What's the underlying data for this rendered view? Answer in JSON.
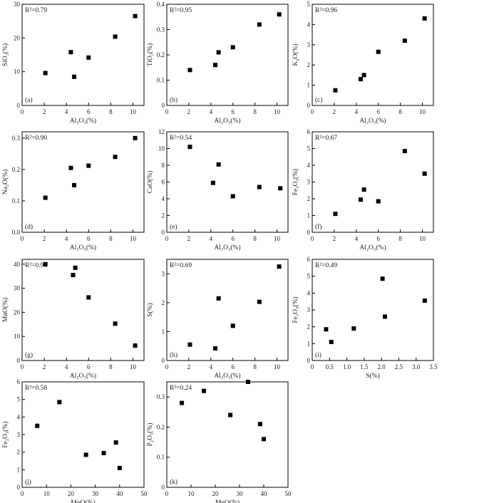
{
  "chart_data": [
    {
      "panel": "(a)",
      "type": "scatter",
      "r2": "R²=0.79",
      "xlabel": "Al₂O₃(%)",
      "ylabel": "SiO₂(%)",
      "xlim": [
        0,
        11
      ],
      "ylim": [
        0,
        30
      ],
      "xticks": [
        "0",
        "2",
        "4",
        "6",
        "8",
        "10"
      ],
      "yticks": [
        "0",
        "10",
        "20",
        "30"
      ],
      "points": [
        [
          2.1,
          9.6
        ],
        [
          4.4,
          15.8
        ],
        [
          4.7,
          8.5
        ],
        [
          6.0,
          14.2
        ],
        [
          8.4,
          20.4
        ],
        [
          10.2,
          26.5
        ]
      ]
    },
    {
      "panel": "(b)",
      "type": "scatter",
      "r2": "R²=0.95",
      "xlabel": "Al₂O₃(%)",
      "ylabel": "TiO₂(%)",
      "xlim": [
        0,
        11
      ],
      "ylim": [
        0,
        0.4
      ],
      "xticks": [
        "0",
        "2",
        "4",
        "6",
        "8",
        "10"
      ],
      "yticks": [
        "0",
        "0.1",
        "0.2",
        "0.3",
        "0.4"
      ],
      "points": [
        [
          2.1,
          0.14
        ],
        [
          4.4,
          0.16
        ],
        [
          4.7,
          0.21
        ],
        [
          6.0,
          0.23
        ],
        [
          8.4,
          0.32
        ],
        [
          10.2,
          0.36
        ]
      ]
    },
    {
      "panel": "(c)",
      "type": "scatter",
      "r2": "R²=0.96",
      "xlabel": "Al₂O₃(%)",
      "ylabel": "K₂O(%)",
      "xlim": [
        0,
        11
      ],
      "ylim": [
        0,
        5
      ],
      "xticks": [
        "0",
        "2",
        "4",
        "6",
        "8",
        "10"
      ],
      "yticks": [
        "0",
        "1",
        "2",
        "3",
        "4",
        "5"
      ],
      "points": [
        [
          2.1,
          0.75
        ],
        [
          4.4,
          1.3
        ],
        [
          4.7,
          1.5
        ],
        [
          6.0,
          2.65
        ],
        [
          8.4,
          3.2
        ],
        [
          10.2,
          4.3
        ]
      ]
    },
    {
      "panel": "(d)",
      "type": "scatter",
      "r2": "R²=0.90",
      "xlabel": "Al₂O₃(%)",
      "ylabel": "Na₂O(%)",
      "xlim": [
        0,
        11
      ],
      "ylim": [
        0,
        0.32
      ],
      "xticks": [
        "0",
        "2",
        "4",
        "6",
        "8",
        "10"
      ],
      "yticks": [
        "0.0",
        "0.1",
        "0.2",
        "0.3"
      ],
      "points": [
        [
          2.1,
          0.11
        ],
        [
          4.4,
          0.205
        ],
        [
          4.7,
          0.15
        ],
        [
          6.0,
          0.212
        ],
        [
          8.4,
          0.24
        ],
        [
          10.2,
          0.3
        ]
      ]
    },
    {
      "panel": "(e)",
      "type": "scatter",
      "r2": "R²=0.54",
      "xlabel": "Al₂O₃(%)",
      "ylabel": "CaO(%)",
      "xlim": [
        0,
        11
      ],
      "ylim": [
        0,
        12
      ],
      "xticks": [
        "0",
        "2",
        "4",
        "6",
        "8",
        "10"
      ],
      "yticks": [
        "0",
        "2",
        "4",
        "6",
        "8",
        "10",
        "12"
      ],
      "points": [
        [
          2.1,
          10.2
        ],
        [
          4.2,
          5.9
        ],
        [
          4.7,
          8.1
        ],
        [
          6.0,
          4.3
        ],
        [
          8.4,
          5.4
        ],
        [
          10.3,
          5.25
        ]
      ]
    },
    {
      "panel": "(f)",
      "type": "scatter",
      "r2": "R²=0.67",
      "xlabel": "Al₂O₃(%)",
      "ylabel": "Fe₂O₃(%)",
      "xlim": [
        0,
        11
      ],
      "ylim": [
        0,
        6
      ],
      "xticks": [
        "0",
        "2",
        "4",
        "6",
        "8",
        "10"
      ],
      "yticks": [
        "0",
        "1",
        "2",
        "3",
        "4",
        "5",
        "6"
      ],
      "points": [
        [
          2.1,
          1.1
        ],
        [
          4.4,
          1.95
        ],
        [
          4.7,
          2.55
        ],
        [
          6.0,
          1.85
        ],
        [
          8.4,
          4.85
        ],
        [
          10.2,
          3.5
        ]
      ]
    },
    {
      "panel": "(g)",
      "type": "scatter",
      "r2": "R²=0.93",
      "xlabel": "Al₂O₃(%)",
      "ylabel": "MnO(%)",
      "xlim": [
        0,
        11
      ],
      "ylim": [
        0,
        42
      ],
      "xticks": [
        "0",
        "2",
        "4",
        "6",
        "8",
        "10"
      ],
      "yticks": [
        "0",
        "10",
        "20",
        "30",
        "40"
      ],
      "points": [
        [
          2.1,
          40
        ],
        [
          4.6,
          35.5
        ],
        [
          4.8,
          38.5
        ],
        [
          6.0,
          26.2
        ],
        [
          8.4,
          15.3
        ],
        [
          10.2,
          6.2
        ]
      ]
    },
    {
      "panel": "(h)",
      "type": "scatter",
      "r2": "R²=0.69",
      "xlabel": "Al₂O₃(%)",
      "ylabel": "S(%)",
      "xlim": [
        0,
        11
      ],
      "ylim": [
        0,
        3.5
      ],
      "xticks": [
        "0",
        "2",
        "4",
        "6",
        "8",
        "10"
      ],
      "yticks": [
        "0",
        "1",
        "2",
        "3"
      ],
      "points": [
        [
          2.1,
          0.55
        ],
        [
          4.4,
          0.42
        ],
        [
          4.7,
          2.15
        ],
        [
          6.0,
          1.2
        ],
        [
          8.4,
          2.03
        ],
        [
          10.2,
          3.25
        ]
      ]
    },
    {
      "panel": "(i)",
      "type": "scatter",
      "r2": "R²=0.49",
      "xlabel": "S(%)",
      "ylabel": "Fe₂O₃(%)",
      "xlim": [
        0,
        3.5
      ],
      "ylim": [
        0,
        6
      ],
      "xticks": [
        "0",
        "0.5",
        "1.0",
        "1.5",
        "2.0",
        "2.5",
        "3.0",
        "3.5"
      ],
      "yticks": [
        "0",
        "1",
        "2",
        "3",
        "4",
        "5",
        "6"
      ],
      "points": [
        [
          0.4,
          1.85
        ],
        [
          0.55,
          1.1
        ],
        [
          1.2,
          1.9
        ],
        [
          2.03,
          4.85
        ],
        [
          2.1,
          2.6
        ],
        [
          3.25,
          3.55
        ]
      ]
    },
    {
      "panel": "(j)",
      "type": "scatter",
      "r2": "R²=0.58",
      "xlabel": "MnO(%)",
      "ylabel": "Fe₂O₃(%)",
      "xlim": [
        0,
        50
      ],
      "ylim": [
        0,
        6
      ],
      "xticks": [
        "0",
        "10",
        "20",
        "30",
        "40",
        "50"
      ],
      "yticks": [
        "0",
        "1",
        "2",
        "3",
        "4",
        "5",
        "6"
      ],
      "points": [
        [
          6.2,
          3.5
        ],
        [
          15.3,
          4.85
        ],
        [
          26.2,
          1.85
        ],
        [
          33.5,
          1.95
        ],
        [
          38.5,
          2.55
        ],
        [
          40,
          1.1
        ]
      ]
    },
    {
      "panel": "(k)",
      "type": "scatter",
      "r2": "R²=0.24",
      "xlabel": "MnO(%)",
      "ylabel": "P₂O₅(%)",
      "xlim": [
        0,
        50
      ],
      "ylim": [
        0,
        0.35
      ],
      "xticks": [
        "0",
        "10",
        "20",
        "30",
        "40",
        "50"
      ],
      "yticks": [
        "0",
        "0.1",
        "0.2",
        "0.3"
      ],
      "points": [
        [
          6.2,
          0.28
        ],
        [
          15.3,
          0.32
        ],
        [
          26.2,
          0.24
        ],
        [
          33.5,
          0.35
        ],
        [
          38.5,
          0.21
        ],
        [
          40,
          0.16
        ]
      ]
    }
  ]
}
